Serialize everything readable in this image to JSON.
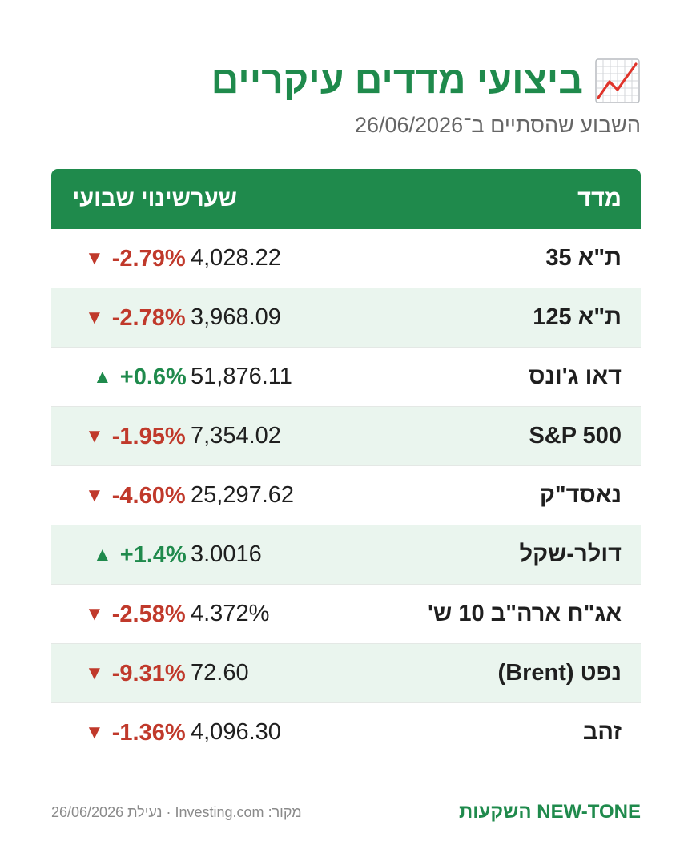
{
  "header": {
    "title": "ביצועי מדדים עיקריים",
    "icon": "chart-increasing-icon",
    "subtitle": "השבוע שהסתיים ב־26/06/2026"
  },
  "table": {
    "columns": {
      "name": "מדד",
      "price": "שער",
      "change": "שינוי שבועי"
    },
    "rows": [
      {
        "name": "ת\"א 35",
        "price": "4,028.22",
        "change": "-2.79%",
        "direction": "down",
        "arrow": "▼"
      },
      {
        "name": "ת\"א 125",
        "price": "3,968.09",
        "change": "-2.78%",
        "direction": "down",
        "arrow": "▼"
      },
      {
        "name": "דאו ג'ונס",
        "price": "51,876.11",
        "change": "+0.6%",
        "direction": "up",
        "arrow": "▲"
      },
      {
        "name": "S&P 500",
        "price": "7,354.02",
        "change": "-1.95%",
        "direction": "down",
        "arrow": "▼"
      },
      {
        "name": "נאסד\"ק",
        "price": "25,297.62",
        "change": "-4.60%",
        "direction": "down",
        "arrow": "▼"
      },
      {
        "name": "דולר-שקל",
        "price": "3.0016",
        "change": "+1.4%",
        "direction": "up",
        "arrow": "▲"
      },
      {
        "name": "אג\"ח ארה\"ב 10 ש'",
        "price": "4.372%",
        "change": "-2.58%",
        "direction": "down",
        "arrow": "▼"
      },
      {
        "name": "נפט (Brent)",
        "price": "72.60",
        "change": "-9.31%",
        "direction": "down",
        "arrow": "▼"
      },
      {
        "name": "זהב",
        "price": "4,096.30",
        "change": "-1.36%",
        "direction": "down",
        "arrow": "▼"
      }
    ]
  },
  "footer": {
    "brand": "NEW-TONE השקעות",
    "source": "מקור: Investing.com · נעילת 26/06/2026"
  },
  "colors": {
    "accent": "#1f8a4c",
    "negative": "#c0392b",
    "alt_row": "#eaf5ee"
  }
}
